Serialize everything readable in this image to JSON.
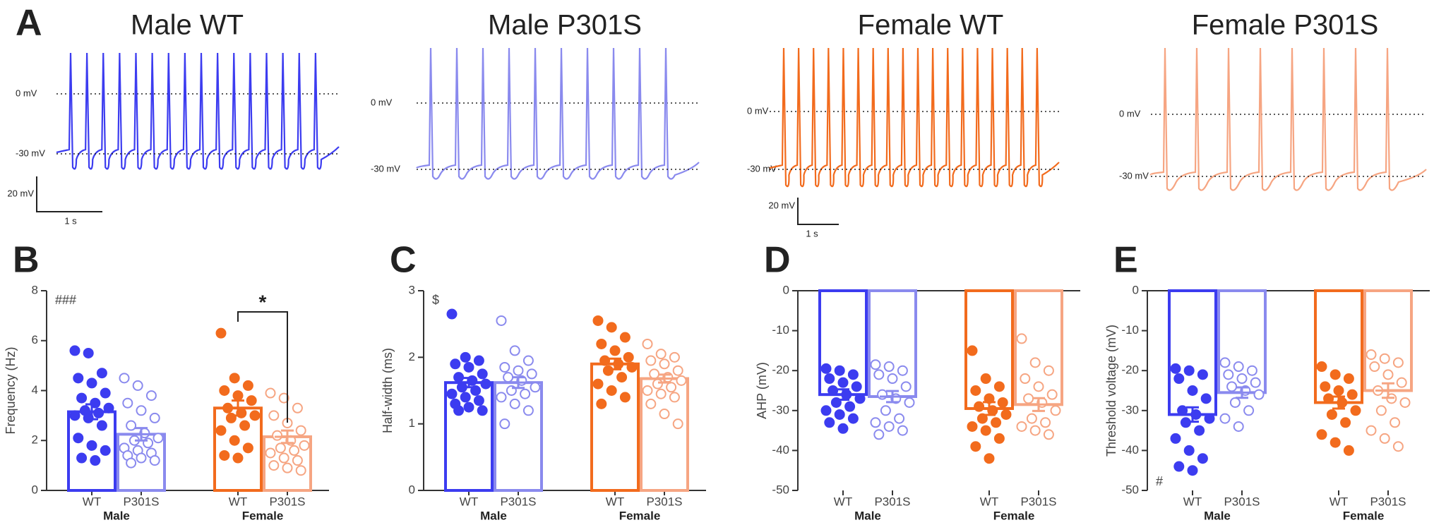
{
  "panel_a": {
    "label": "A",
    "traces": [
      {
        "title": "Male WT",
        "color": "#3c3cf0",
        "zero_label": "0 mV",
        "low_label": "-30 mV"
      },
      {
        "title": "Male P301S",
        "color": "#8a8aee",
        "zero_label": "0 mV",
        "low_label": "-30 mV"
      },
      {
        "title": "Female WT",
        "color": "#f26b1d",
        "zero_label": "0 mV",
        "low_label": "-30 mV"
      },
      {
        "title": "Female P301S",
        "color": "#f6a582",
        "zero_label": "0 mV",
        "low_label": "-30 mV"
      }
    ],
    "scale_bars": [
      {
        "voltage": "20 mV",
        "time": "1 s"
      },
      {
        "voltage": "20 mV",
        "time": "1 s"
      }
    ]
  },
  "chart_data": [
    {
      "type": "barscatter",
      "panel_label": "B",
      "ylabel": "Frequency (Hz)",
      "ylim": [
        0,
        8
      ],
      "yticks": [
        0,
        2,
        4,
        6,
        8
      ],
      "categories": [
        "WT",
        "P301S",
        "WT",
        "P301S"
      ],
      "groups": [
        "Male",
        "Female"
      ],
      "colors": [
        "#3c3cf0",
        "#8a8aee",
        "#f26b1d",
        "#f6a582"
      ],
      "means": [
        3.15,
        2.25,
        3.3,
        2.15
      ],
      "sems": [
        0.3,
        0.25,
        0.3,
        0.25
      ],
      "points": [
        [
          5.6,
          5.5,
          4.7,
          4.5,
          4.3,
          3.9,
          3.7,
          3.5,
          3.3,
          3.2,
          3.1,
          3.0,
          2.9,
          2.6,
          2.1,
          1.8,
          1.6,
          1.3,
          1.2
        ],
        [
          4.5,
          4.2,
          3.8,
          3.5,
          3.2,
          2.9,
          2.6,
          2.3,
          2.1,
          2.0,
          1.9,
          1.7,
          1.6,
          1.5,
          1.4,
          1.3,
          1.2,
          1.1
        ],
        [
          6.3,
          4.5,
          4.2,
          4.0,
          3.8,
          3.6,
          3.3,
          3.1,
          3.0,
          2.9,
          2.6,
          2.4,
          2.0,
          1.7,
          1.4,
          1.3
        ],
        [
          3.9,
          3.7,
          3.3,
          3.0,
          2.7,
          2.4,
          2.2,
          2.0,
          1.8,
          1.7,
          1.6,
          1.5,
          1.3,
          1.2,
          1.0,
          0.9,
          0.8
        ]
      ],
      "annotation": "###",
      "annotation_corner": "top-left",
      "significance_label": "*"
    },
    {
      "type": "barscatter",
      "panel_label": "C",
      "ylabel": "Half-width (ms)",
      "ylim": [
        0,
        3
      ],
      "yticks": [
        0,
        1,
        2,
        3
      ],
      "categories": [
        "WT",
        "P301S",
        "WT",
        "P301S"
      ],
      "groups": [
        "Male",
        "Female"
      ],
      "colors": [
        "#3c3cf0",
        "#8a8aee",
        "#f26b1d",
        "#f6a582"
      ],
      "means": [
        1.62,
        1.62,
        1.9,
        1.68
      ],
      "sems": [
        0.07,
        0.08,
        0.08,
        0.06
      ],
      "points": [
        [
          2.65,
          2.0,
          1.95,
          1.9,
          1.85,
          1.75,
          1.7,
          1.65,
          1.6,
          1.55,
          1.5,
          1.45,
          1.4,
          1.35,
          1.3,
          1.25,
          1.2,
          1.2
        ],
        [
          2.55,
          2.1,
          1.95,
          1.85,
          1.8,
          1.75,
          1.7,
          1.65,
          1.55,
          1.5,
          1.45,
          1.4,
          1.3,
          1.2,
          1.0
        ],
        [
          2.55,
          2.45,
          2.3,
          2.2,
          2.1,
          2.0,
          1.95,
          1.9,
          1.85,
          1.8,
          1.7,
          1.6,
          1.5,
          1.4,
          1.3
        ],
        [
          2.2,
          2.05,
          2.0,
          1.95,
          1.9,
          1.8,
          1.75,
          1.7,
          1.65,
          1.6,
          1.55,
          1.5,
          1.45,
          1.4,
          1.3,
          1.15,
          1.0
        ]
      ],
      "annotation": "$",
      "annotation_corner": "top-left"
    },
    {
      "type": "barscatter",
      "panel_label": "D",
      "ylabel": "AHP (mV)",
      "ylim": [
        -50,
        0
      ],
      "yticks": [
        0,
        -10,
        -20,
        -30,
        -40,
        -50
      ],
      "categories": [
        "WT",
        "P301S",
        "WT",
        "P301S"
      ],
      "groups": [
        "Male",
        "Female"
      ],
      "colors": [
        "#3c3cf0",
        "#8a8aee",
        "#f26b1d",
        "#f6a582"
      ],
      "means": [
        -26,
        -26.5,
        -29.5,
        -28.5
      ],
      "sems": [
        1.3,
        1.4,
        1.6,
        1.6
      ],
      "points": [
        [
          -19.5,
          -20,
          -21,
          -22,
          -23,
          -24,
          -25,
          -26,
          -27,
          -28,
          -29,
          -30,
          -31,
          -32,
          -33,
          -34.5
        ],
        [
          -18.5,
          -19,
          -20,
          -21,
          -22,
          -24,
          -26,
          -27,
          -28,
          -30,
          -32,
          -33,
          -34,
          -35,
          -36
        ],
        [
          -15,
          -22,
          -24,
          -25,
          -27,
          -28,
          -29,
          -30,
          -31,
          -32,
          -33,
          -34,
          -35,
          -37,
          -39,
          -42
        ],
        [
          -12,
          -18,
          -20,
          -22,
          -24,
          -26,
          -27,
          -28,
          -30,
          -32,
          -33,
          -34,
          -35,
          -36
        ]
      ]
    },
    {
      "type": "barscatter",
      "panel_label": "E",
      "ylabel": "Threshold voltage (mV)",
      "ylim": [
        -50,
        0
      ],
      "yticks": [
        0,
        -10,
        -20,
        -30,
        -40,
        -50
      ],
      "categories": [
        "WT",
        "P301S",
        "WT",
        "P301S"
      ],
      "groups": [
        "Male",
        "Female"
      ],
      "colors": [
        "#3c3cf0",
        "#8a8aee",
        "#f26b1d",
        "#f6a582"
      ],
      "means": [
        -31,
        -25.5,
        -28,
        -25
      ],
      "sems": [
        1.8,
        1.3,
        1.5,
        1.8
      ],
      "points": [
        [
          -19.5,
          -20,
          -21,
          -22,
          -25,
          -27,
          -30,
          -31,
          -32,
          -33,
          -35,
          -37,
          -40,
          -42,
          -44,
          -45
        ],
        [
          -18,
          -19,
          -20,
          -21,
          -22,
          -23,
          -24,
          -25,
          -26,
          -28,
          -30,
          -32,
          -34
        ],
        [
          -19,
          -21,
          -22,
          -24,
          -25,
          -26,
          -27,
          -28,
          -30,
          -31,
          -33,
          -36,
          -38,
          -40
        ],
        [
          -16,
          -17,
          -18,
          -19,
          -21,
          -23,
          -25,
          -27,
          -28,
          -30,
          -33,
          -35,
          -37,
          -39
        ]
      ],
      "annotation": "#",
      "annotation_corner": "bottom-left"
    }
  ]
}
